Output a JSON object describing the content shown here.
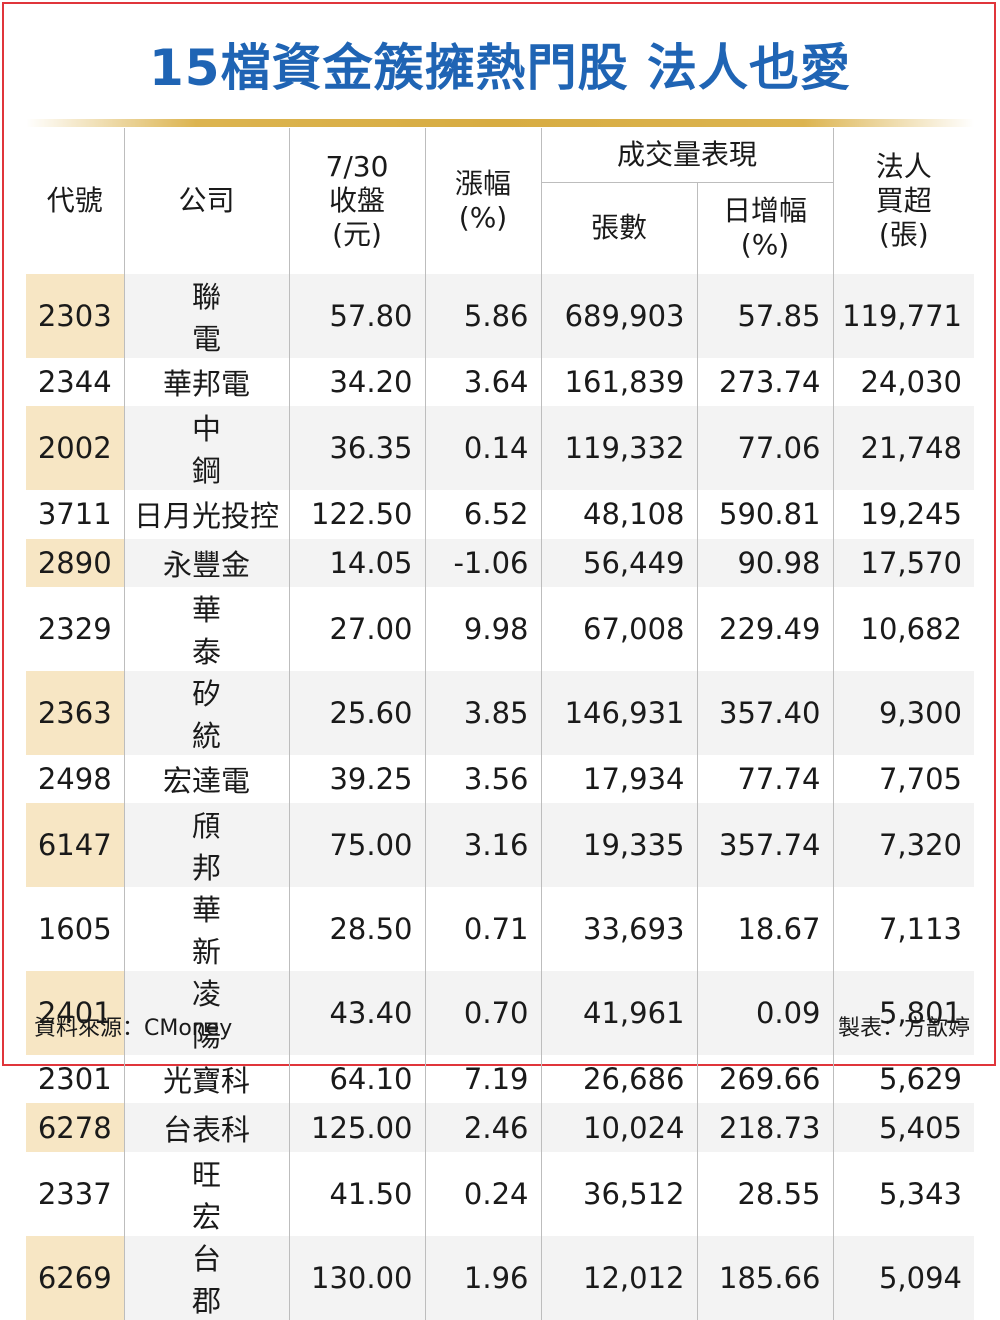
{
  "title": "15檔資金簇擁熱門股 法人也愛",
  "colors": {
    "title": "#1f64b4",
    "border": "#e0353b",
    "code_shade": "#f7e6c4",
    "row_shade": "#f3f3f3"
  },
  "headers": {
    "code": "代號",
    "company": "公司",
    "close_l1": "7/30",
    "close_l2": "收盤",
    "close_l3": "(元)",
    "change_l1": "漲幅",
    "change_l2": "(%)",
    "volume_group": "成交量表現",
    "lots": "張數",
    "daily_inc_l1": "日增幅",
    "daily_inc_l2": "(%)",
    "inst_l1": "法人",
    "inst_l2": "買超",
    "inst_l3": "(張)"
  },
  "rows": [
    {
      "code": "2303",
      "name": "聯電",
      "close": "57.80",
      "change": "5.86",
      "lots": "689,903",
      "daily": "57.85",
      "net": "119,771"
    },
    {
      "code": "2344",
      "name": "華邦電",
      "close": "34.20",
      "change": "3.64",
      "lots": "161,839",
      "daily": "273.74",
      "net": "24,030"
    },
    {
      "code": "2002",
      "name": "中鋼",
      "close": "36.35",
      "change": "0.14",
      "lots": "119,332",
      "daily": "77.06",
      "net": "21,748"
    },
    {
      "code": "3711",
      "name": "日月光投控",
      "close": "122.50",
      "change": "6.52",
      "lots": "48,108",
      "daily": "590.81",
      "net": "19,245"
    },
    {
      "code": "2890",
      "name": "永豐金",
      "close": "14.05",
      "change": "-1.06",
      "lots": "56,449",
      "daily": "90.98",
      "net": "17,570"
    },
    {
      "code": "2329",
      "name": "華泰",
      "close": "27.00",
      "change": "9.98",
      "lots": "67,008",
      "daily": "229.49",
      "net": "10,682"
    },
    {
      "code": "2363",
      "name": "矽統",
      "close": "25.60",
      "change": "3.85",
      "lots": "146,931",
      "daily": "357.40",
      "net": "9,300"
    },
    {
      "code": "2498",
      "name": "宏達電",
      "close": "39.25",
      "change": "3.56",
      "lots": "17,934",
      "daily": "77.74",
      "net": "7,705"
    },
    {
      "code": "6147",
      "name": "頎邦",
      "close": "75.00",
      "change": "3.16",
      "lots": "19,335",
      "daily": "357.74",
      "net": "7,320"
    },
    {
      "code": "1605",
      "name": "華新",
      "close": "28.50",
      "change": "0.71",
      "lots": "33,693",
      "daily": "18.67",
      "net": "7,113"
    },
    {
      "code": "2401",
      "name": "凌陽",
      "close": "43.40",
      "change": "0.70",
      "lots": "41,961",
      "daily": "0.09",
      "net": "5,801"
    },
    {
      "code": "2301",
      "name": "光寶科",
      "close": "64.10",
      "change": "7.19",
      "lots": "26,686",
      "daily": "269.66",
      "net": "5,629"
    },
    {
      "code": "6278",
      "name": "台表科",
      "close": "125.00",
      "change": "2.46",
      "lots": "10,024",
      "daily": "218.73",
      "net": "5,405"
    },
    {
      "code": "2337",
      "name": "旺宏",
      "close": "41.50",
      "change": "0.24",
      "lots": "36,512",
      "daily": "28.55",
      "net": "5,343"
    },
    {
      "code": "6269",
      "name": "台郡",
      "close": "130.00",
      "change": "1.96",
      "lots": "12,012",
      "daily": "185.66",
      "net": "5,094"
    }
  ],
  "footer": {
    "source": "資料來源：CMoney",
    "maker": "製表：方歆婷"
  }
}
